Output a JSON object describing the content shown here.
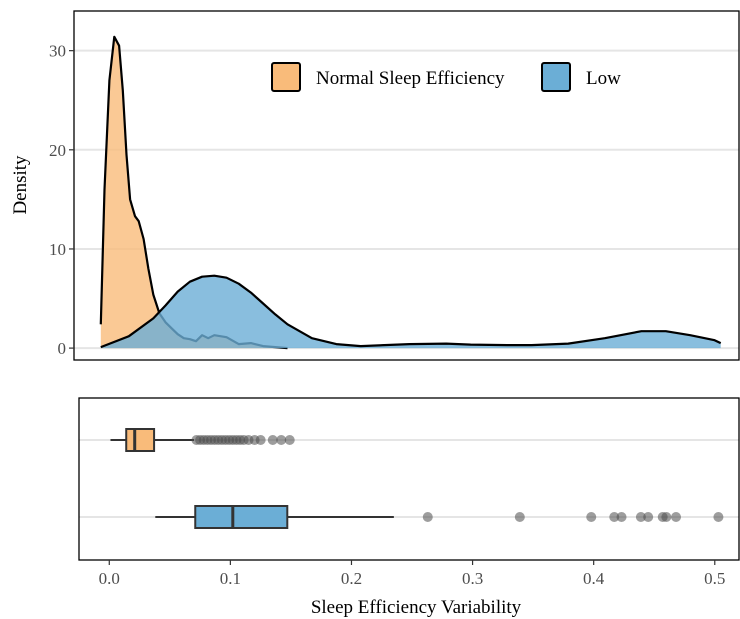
{
  "chart_data": [
    {
      "type": "area",
      "subtype": "density",
      "ylabel": "Density",
      "xlim": [
        -0.025,
        0.52
      ],
      "ylim": [
        -1.2,
        34
      ],
      "yticks": [
        0,
        10,
        20,
        30
      ],
      "grid": true,
      "legend": {
        "position": "top-right",
        "entries": [
          {
            "label": "Normal Sleep Efficiency",
            "color": "#F9BB7A"
          },
          {
            "label": "Low",
            "color": "#6BAED6"
          }
        ]
      },
      "series": [
        {
          "name": "Normal Sleep Efficiency",
          "color": "#F9BB7A",
          "x": [
            -0.003,
            0.0,
            0.004,
            0.008,
            0.012,
            0.015,
            0.018,
            0.021,
            0.025,
            0.028,
            0.032,
            0.036,
            0.04,
            0.045,
            0.05,
            0.055,
            0.06,
            0.065,
            0.07,
            0.075,
            0.08,
            0.085,
            0.09,
            0.1,
            0.11,
            0.12,
            0.13,
            0.14,
            0.15
          ],
          "y": [
            2.4,
            16.0,
            27.0,
            31.4,
            30.5,
            26.0,
            19.5,
            15.0,
            13.3,
            12.8,
            11.0,
            8.0,
            5.4,
            3.5,
            2.6,
            2.0,
            1.4,
            1.0,
            0.9,
            0.7,
            1.3,
            1.0,
            1.3,
            1.1,
            0.4,
            0.5,
            0.2,
            0.1,
            0.0
          ]
        },
        {
          "name": "Low",
          "color": "#6BAED6",
          "x": [
            -0.003,
            0.02,
            0.04,
            0.05,
            0.06,
            0.07,
            0.08,
            0.09,
            0.1,
            0.11,
            0.12,
            0.13,
            0.14,
            0.15,
            0.17,
            0.19,
            0.21,
            0.25,
            0.28,
            0.3,
            0.33,
            0.35,
            0.38,
            0.41,
            0.44,
            0.46,
            0.48,
            0.5,
            0.505
          ],
          "y": [
            0.1,
            1.2,
            3.0,
            4.3,
            5.7,
            6.7,
            7.2,
            7.3,
            7.1,
            6.5,
            5.6,
            4.5,
            3.4,
            2.4,
            1.0,
            0.4,
            0.2,
            0.4,
            0.45,
            0.35,
            0.3,
            0.3,
            0.45,
            1.0,
            1.7,
            1.7,
            1.3,
            0.8,
            0.5
          ]
        }
      ]
    },
    {
      "type": "box",
      "xlabel": "Sleep Efficiency Variability",
      "xlim": [
        -0.025,
        0.52
      ],
      "xticks": [
        "0.0",
        "0.1",
        "0.2",
        "0.3",
        "0.4",
        "0.5"
      ],
      "grid": true,
      "series": [
        {
          "name": "Normal Sleep Efficiency",
          "color": "#F9BB7A",
          "whisker_low": 0.001,
          "q1": 0.014,
          "median": 0.021,
          "q3": 0.037,
          "whisker_high": 0.07,
          "outliers": [
            0.072,
            0.075,
            0.078,
            0.081,
            0.084,
            0.087,
            0.09,
            0.093,
            0.096,
            0.099,
            0.102,
            0.105,
            0.108,
            0.111,
            0.115,
            0.12,
            0.125,
            0.135,
            0.142,
            0.149
          ]
        },
        {
          "name": "Low",
          "color": "#6BAED6",
          "whisker_low": 0.038,
          "q1": 0.071,
          "median": 0.102,
          "q3": 0.147,
          "whisker_high": 0.235,
          "outliers": [
            0.263,
            0.339,
            0.398,
            0.417,
            0.423,
            0.439,
            0.445,
            0.457,
            0.46,
            0.468,
            0.503
          ]
        }
      ]
    }
  ]
}
